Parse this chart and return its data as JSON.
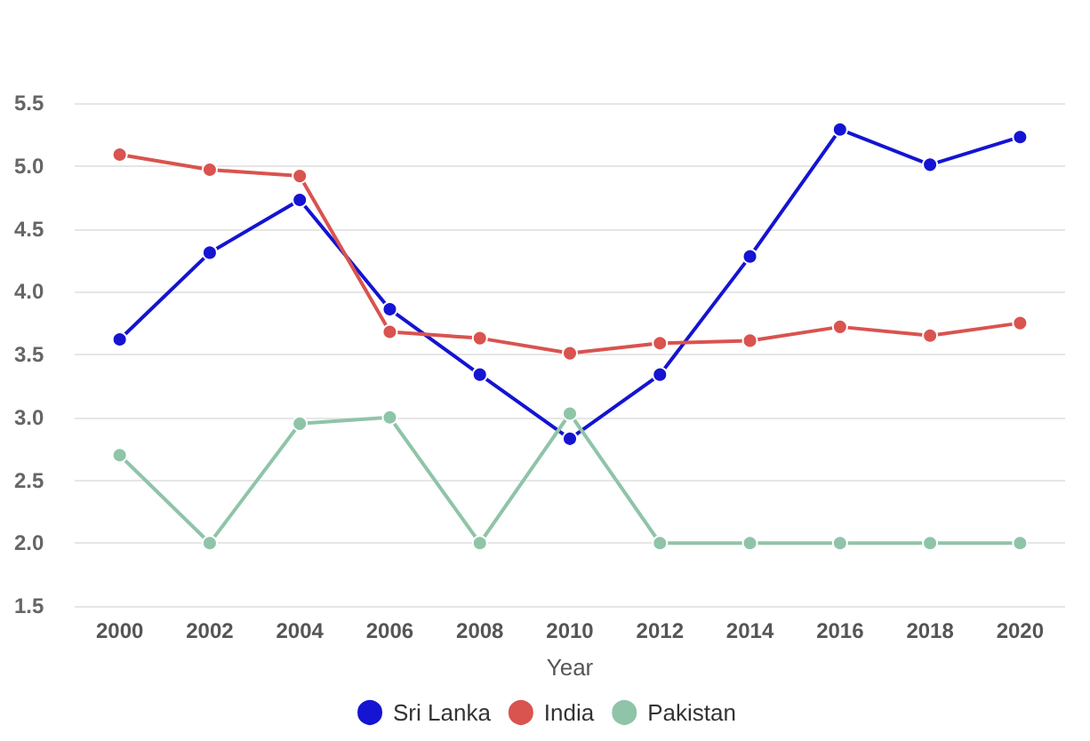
{
  "chart_data": {
    "type": "line",
    "xlabel": "Year",
    "categories": [
      "2000",
      "2002",
      "2004",
      "2006",
      "2008",
      "2010",
      "2012",
      "2014",
      "2016",
      "2018",
      "2020"
    ],
    "series": [
      {
        "name": "Sri Lanka",
        "color": "#1414d2",
        "values": [
          3.62,
          4.31,
          4.73,
          3.86,
          3.34,
          2.83,
          3.34,
          4.28,
          5.29,
          5.01,
          5.23
        ]
      },
      {
        "name": "India",
        "color": "#d9534f",
        "values": [
          5.09,
          4.97,
          4.92,
          3.68,
          3.63,
          3.51,
          3.59,
          3.61,
          3.72,
          3.65,
          3.75
        ]
      },
      {
        "name": "Pakistan",
        "color": "#8fc4a8",
        "values": [
          2.7,
          2.0,
          2.95,
          3.0,
          2.0,
          3.03,
          2.0,
          2.0,
          2.0,
          2.0,
          2.0
        ]
      }
    ],
    "ylim": [
      1.5,
      5.5
    ],
    "yticks": [
      1.5,
      {
        "value": 2,
        "label": "2.0"
      },
      2.5,
      {
        "value": 3,
        "label": "3.0"
      },
      3.5,
      {
        "value": 4,
        "label": "4.0"
      },
      4.5,
      {
        "value": 5,
        "label": "5.0"
      },
      5.5
    ],
    "grid": "y",
    "legend": "bottom",
    "marker": "circle",
    "line_style": "solid"
  }
}
